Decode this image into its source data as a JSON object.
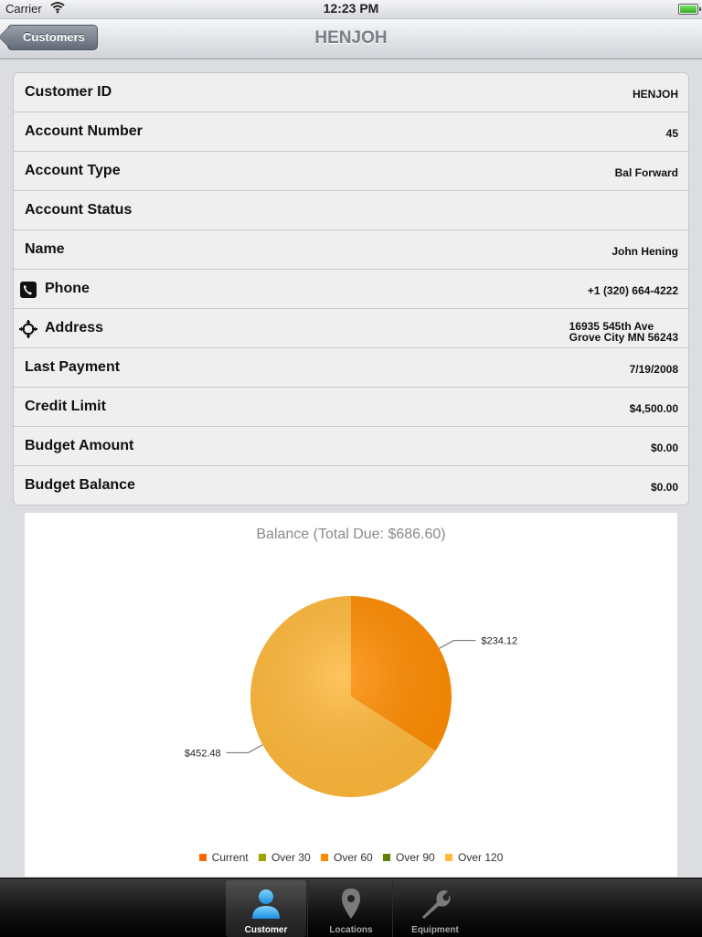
{
  "status_bar": {
    "carrier": "Carrier",
    "time": "12:23 PM"
  },
  "nav": {
    "back_label": "Customers",
    "title": "HENJOH"
  },
  "details": [
    {
      "label": "Customer ID",
      "value": "HENJOH"
    },
    {
      "label": "Account Number",
      "value": "45"
    },
    {
      "label": "Account Type",
      "value": "Bal Forward"
    },
    {
      "label": "Account Status",
      "value": ""
    },
    {
      "label": "Name",
      "value": "John Hening"
    },
    {
      "label": "Phone",
      "value": "+1 (320) 664-4222",
      "icon": "phone-icon"
    },
    {
      "label": "Address",
      "value_line1": "16935 545th Ave",
      "value_line2": "Grove City MN 56243",
      "icon": "crosshair-icon"
    },
    {
      "label": "Last Payment",
      "value": "7/19/2008"
    },
    {
      "label": "Credit Limit",
      "value": "$4,500.00"
    },
    {
      "label": "Budget Amount",
      "value": "$0.00"
    },
    {
      "label": "Budget Balance",
      "value": "$0.00"
    }
  ],
  "chart_data": {
    "type": "pie",
    "title": "Balance (Total Due: $686.60)",
    "slices": [
      {
        "name": "Current",
        "value": 234.12,
        "label": "$234.12",
        "color": "#ff8c00"
      },
      {
        "name": "Over 120",
        "value": 452.48,
        "label": "$452.48",
        "color": "#ffb83a"
      }
    ],
    "legend": [
      {
        "name": "Current",
        "color": "#ff6600"
      },
      {
        "name": "Over 30",
        "color": "#a0a000"
      },
      {
        "name": "Over 60",
        "color": "#ff8c00"
      },
      {
        "name": "Over 90",
        "color": "#608000"
      },
      {
        "name": "Over 120",
        "color": "#ffb83a"
      }
    ],
    "legend_position": "bottom"
  },
  "tabs": [
    {
      "label": "Customer",
      "icon": "person-icon",
      "active": true
    },
    {
      "label": "Locations",
      "icon": "location-pin-icon",
      "active": false
    },
    {
      "label": "Equipment",
      "icon": "wrench-icon",
      "active": false
    }
  ]
}
